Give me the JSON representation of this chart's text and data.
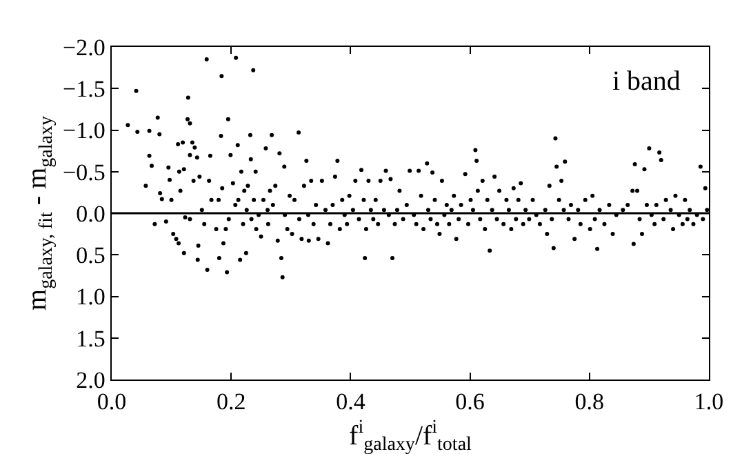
{
  "chart_data": {
    "type": "scatter",
    "xlabel": "f$^{i}$$_{galaxy}$/f$^{i}$$_{total}$",
    "ylabel": "m$_{galaxy, fit}$ - m$_{galaxy}$",
    "annotations": [
      "i band"
    ],
    "marker": "circle",
    "grid": false,
    "xlim": [
      0,
      1
    ],
    "xticks": [
      {
        "value": 0,
        "label": "0.0"
      },
      0.2,
      0.4,
      0.6,
      0.8,
      {
        "value": 1,
        "label": "1.0"
      }
    ],
    "ylim": [
      2,
      -2
    ],
    "yticks": [
      {
        "value": -2,
        "label": "−2.0"
      },
      {
        "value": -1.5,
        "label": "−1.5"
      },
      {
        "value": -1,
        "label": "−1.0"
      },
      {
        "value": -0.5,
        "label": "−0.5"
      },
      {
        "value": 0,
        "label": "0.0"
      },
      0.5,
      {
        "value": 1,
        "label": "1.0"
      },
      1.5,
      {
        "value": 2,
        "label": "2.0"
      }
    ],
    "ref_lines": [
      {
        "axis": "y",
        "value": 0,
        "color": "#000000"
      }
    ],
    "series": [
      {
        "color": "#000000",
        "x": [
          0.027,
          0.041,
          0.043,
          0.057,
          0.063,
          0.063,
          0.067,
          0.072,
          0.077,
          0.08,
          0.081,
          0.084,
          0.091,
          0.095,
          0.097,
          0.1,
          0.103,
          0.108,
          0.111,
          0.112,
          0.113,
          0.115,
          0.119,
          0.121,
          0.121,
          0.123,
          0.127,
          0.128,
          0.131,
          0.131,
          0.131,
          0.135,
          0.137,
          0.139,
          0.143,
          0.144,
          0.145,
          0.147,
          0.151,
          0.155,
          0.159,
          0.16,
          0.163,
          0.165,
          0.167,
          0.175,
          0.179,
          0.18,
          0.183,
          0.184,
          0.185,
          0.187,
          0.191,
          0.193,
          0.195,
          0.196,
          0.199,
          0.203,
          0.207,
          0.208,
          0.211,
          0.212,
          0.215,
          0.217,
          0.22,
          0.222,
          0.225,
          0.226,
          0.228,
          0.232,
          0.233,
          0.234,
          0.237,
          0.238,
          0.241,
          0.242,
          0.246,
          0.25,
          0.254,
          0.258,
          0.261,
          0.262,
          0.265,
          0.268,
          0.27,
          0.274,
          0.278,
          0.281,
          0.284,
          0.286,
          0.289,
          0.29,
          0.294,
          0.298,
          0.302,
          0.306,
          0.313,
          0.314,
          0.318,
          0.322,
          0.326,
          0.329,
          0.33,
          0.334,
          0.338,
          0.342,
          0.346,
          0.352,
          0.358,
          0.362,
          0.366,
          0.37,
          0.374,
          0.378,
          0.382,
          0.386,
          0.39,
          0.394,
          0.398,
          0.404,
          0.408,
          0.414,
          0.418,
          0.422,
          0.424,
          0.426,
          0.43,
          0.434,
          0.438,
          0.442,
          0.446,
          0.45,
          0.456,
          0.459,
          0.464,
          0.467,
          0.47,
          0.474,
          0.478,
          0.482,
          0.488,
          0.494,
          0.499,
          0.506,
          0.51,
          0.514,
          0.518,
          0.522,
          0.528,
          0.53,
          0.534,
          0.537,
          0.541,
          0.545,
          0.549,
          0.553,
          0.557,
          0.561,
          0.565,
          0.569,
          0.573,
          0.577,
          0.581,
          0.585,
          0.592,
          0.597,
          0.601,
          0.605,
          0.609,
          0.611,
          0.613,
          0.617,
          0.621,
          0.625,
          0.629,
          0.633,
          0.637,
          0.641,
          0.645,
          0.649,
          0.656,
          0.661,
          0.665,
          0.669,
          0.673,
          0.677,
          0.681,
          0.685,
          0.689,
          0.693,
          0.699,
          0.705,
          0.711,
          0.717,
          0.726,
          0.729,
          0.733,
          0.737,
          0.74,
          0.743,
          0.745,
          0.749,
          0.753,
          0.757,
          0.759,
          0.765,
          0.769,
          0.775,
          0.781,
          0.785,
          0.793,
          0.801,
          0.805,
          0.809,
          0.813,
          0.817,
          0.825,
          0.833,
          0.839,
          0.845,
          0.856,
          0.864,
          0.872,
          0.874,
          0.876,
          0.88,
          0.884,
          0.888,
          0.892,
          0.896,
          0.9,
          0.904,
          0.909,
          0.912,
          0.917,
          0.92,
          0.924,
          0.928,
          0.936,
          0.94,
          0.944,
          0.95,
          0.956,
          0.96,
          0.964,
          0.968,
          0.974,
          0.98,
          0.986,
          0.99,
          0.994,
          0.997
        ],
        "values": [
          -1.06,
          -1.47,
          -0.98,
          -0.33,
          -0.99,
          -0.69,
          -0.57,
          0.13,
          -1.15,
          -0.95,
          -0.24,
          -0.17,
          0.1,
          -0.55,
          -0.4,
          -0.16,
          0.25,
          0.31,
          -0.83,
          0.36,
          -0.5,
          -0.27,
          -0.85,
          0.48,
          -0.53,
          0.05,
          -1.13,
          -1.39,
          -1.08,
          -0.7,
          0.07,
          -0.85,
          -0.39,
          -0.79,
          -0.67,
          0.56,
          0.39,
          -0.44,
          -0.04,
          0.13,
          -1.85,
          0.68,
          -0.39,
          -0.69,
          -0.16,
          0.19,
          -0.16,
          0.54,
          -0.93,
          -1.65,
          -0.3,
          0.36,
          0.19,
          0.71,
          -1.13,
          0.07,
          -0.7,
          -0.36,
          -0.1,
          -1.87,
          -0.82,
          -0.16,
          0.56,
          -0.5,
          0.13,
          -0.27,
          0.48,
          -0.04,
          -0.33,
          -0.94,
          -0.65,
          0.07,
          -1.72,
          -0.16,
          -0.5,
          0.19,
          0.02,
          0.28,
          -0.16,
          -0.78,
          -0.04,
          0.13,
          -0.27,
          -0.94,
          -0.1,
          -0.33,
          0.33,
          -0.72,
          0.54,
          0.77,
          -0.56,
          0.02,
          0.19,
          -0.21,
          0.25,
          -0.16,
          -0.97,
          0.07,
          0.31,
          -0.33,
          -0.63,
          0.02,
          0.33,
          -0.39,
          0.13,
          -0.1,
          0.31,
          -0.39,
          -0.04,
          0.36,
          0.13,
          -0.1,
          -0.44,
          -0.63,
          0.19,
          -0.16,
          0.02,
          0.13,
          -0.21,
          -0.04,
          -0.39,
          0.07,
          -0.52,
          -0.16,
          0.54,
          0.19,
          -0.39,
          -0.04,
          0.07,
          -0.16,
          0.13,
          -0.39,
          -0.04,
          -0.51,
          0.02,
          -0.41,
          0.54,
          0.13,
          -0.04,
          -0.27,
          0.07,
          -0.1,
          -0.51,
          0.02,
          0.13,
          -0.51,
          -0.21,
          0.19,
          -0.6,
          -0.04,
          0.07,
          -0.49,
          -0.16,
          0.13,
          0.25,
          -0.39,
          0.02,
          -0.1,
          0.13,
          -0.04,
          -0.21,
          0.31,
          0.07,
          -0.1,
          -0.47,
          0.13,
          -0.16,
          -0.04,
          -0.76,
          -0.63,
          -0.27,
          0.07,
          -0.39,
          0.19,
          -0.16,
          0.45,
          -0.04,
          -0.44,
          0.07,
          -0.27,
          0.13,
          -0.16,
          -0.04,
          0.19,
          -0.3,
          0.07,
          -0.16,
          -0.36,
          0.13,
          -0.04,
          0.07,
          -0.16,
          0.02,
          0.13,
          -0.04,
          0.25,
          -0.33,
          0.07,
          0.42,
          -0.9,
          -0.56,
          -0.16,
          -0.39,
          -0.04,
          -0.62,
          0.07,
          -0.1,
          0.31,
          -0.04,
          0.13,
          -0.16,
          0.19,
          -0.21,
          0.07,
          0.43,
          -0.04,
          0.13,
          -0.1,
          0.25,
          0.02,
          -0.04,
          -0.1,
          -0.27,
          0.37,
          -0.59,
          -0.27,
          0.07,
          0.25,
          -0.53,
          -0.1,
          -0.78,
          0.02,
          0.13,
          -0.1,
          -0.73,
          -0.64,
          0.07,
          -0.16,
          -0.04,
          0.19,
          -0.21,
          0.02,
          0.13,
          -0.16,
          0.07,
          -0.04,
          0.13,
          0.02,
          -0.56,
          0.07,
          -0.3,
          -0.04
        ]
      }
    ]
  }
}
